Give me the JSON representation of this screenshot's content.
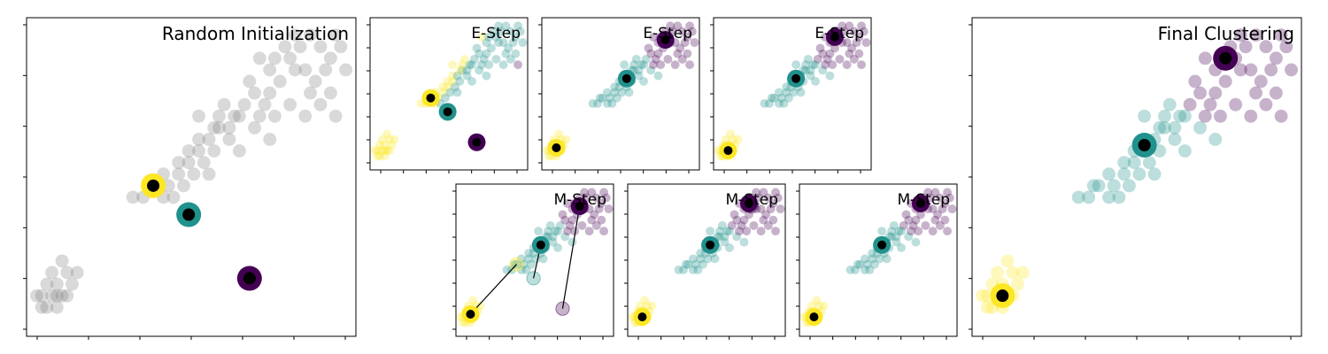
{
  "colors": {
    "init": "#808080",
    "cluster_yellow": "#fde725",
    "cluster_teal": "#21918c",
    "cluster_purple": "#440154",
    "center_dot": "#000000",
    "frame": "#000000"
  },
  "chart_data": [
    {
      "id": "random-init",
      "type": "scatter",
      "title": "Random Initialization",
      "xlim": [
        0,
        6.5
      ],
      "ylim": [
        -0.3,
        5.2
      ],
      "ticks_labeled": false,
      "points_color": "gray",
      "points": [
        [
          0.3,
          0.4
        ],
        [
          0.4,
          0.2
        ],
        [
          0.5,
          0.4
        ],
        [
          0.6,
          0.6
        ],
        [
          0.7,
          0.4
        ],
        [
          0.4,
          0.6
        ],
        [
          0.5,
          0.8
        ],
        [
          0.6,
          0.2
        ],
        [
          0.8,
          0.4
        ],
        [
          0.9,
          0.6
        ],
        [
          0.8,
          0.8
        ],
        [
          0.7,
          1.0
        ],
        [
          0.3,
          0.2
        ],
        [
          0.2,
          0.4
        ],
        [
          0.6,
          0.4
        ],
        [
          1.0,
          0.8
        ],
        [
          2.3,
          2.1
        ],
        [
          2.5,
          2.3
        ],
        [
          2.7,
          2.5
        ],
        [
          2.8,
          2.3
        ],
        [
          3.0,
          2.5
        ],
        [
          3.1,
          2.3
        ],
        [
          3.2,
          2.7
        ],
        [
          3.3,
          2.5
        ],
        [
          3.4,
          2.9
        ],
        [
          3.5,
          2.7
        ],
        [
          3.6,
          2.5
        ],
        [
          3.7,
          2.9
        ],
        [
          3.4,
          3.1
        ],
        [
          3.6,
          3.1
        ],
        [
          3.8,
          3.3
        ],
        [
          4.0,
          3.1
        ],
        [
          4.1,
          3.5
        ],
        [
          3.9,
          3.7
        ],
        [
          4.3,
          3.7
        ],
        [
          4.2,
          3.5
        ],
        [
          4.5,
          3.3
        ],
        [
          4.6,
          3.5
        ],
        [
          4.7,
          3.7
        ],
        [
          4.5,
          3.9
        ],
        [
          4.8,
          3.9
        ],
        [
          2.1,
          2.1
        ],
        [
          2.4,
          2.3
        ],
        [
          2.7,
          2.1
        ],
        [
          2.9,
          2.1
        ],
        [
          3.0,
          2.7
        ],
        [
          3.2,
          2.9
        ],
        [
          3.4,
          3.5
        ],
        [
          3.7,
          3.3
        ],
        [
          4.0,
          3.3
        ],
        [
          4.2,
          2.9
        ],
        [
          4.8,
          3.1
        ],
        [
          3.8,
          3.5
        ],
        [
          4.9,
          3.5
        ],
        [
          4.4,
          4.1
        ],
        [
          4.6,
          4.5
        ],
        [
          4.8,
          4.3
        ],
        [
          5.0,
          4.1
        ],
        [
          5.2,
          4.5
        ],
        [
          5.4,
          4.7
        ],
        [
          5.6,
          4.9
        ],
        [
          5.8,
          4.7
        ],
        [
          5.5,
          4.3
        ],
        [
          5.7,
          4.1
        ],
        [
          5.9,
          4.3
        ],
        [
          6.0,
          4.5
        ],
        [
          6.1,
          4.9
        ],
        [
          6.2,
          4.7
        ],
        [
          6.3,
          4.3
        ],
        [
          5.3,
          4.9
        ],
        [
          5.1,
          4.7
        ],
        [
          4.9,
          4.5
        ],
        [
          5.3,
          4.3
        ],
        [
          5.6,
          3.9
        ],
        [
          6.0,
          3.9
        ],
        [
          5.8,
          3.7
        ],
        [
          6.1,
          3.5
        ],
        [
          5.2,
          3.7
        ],
        [
          5.5,
          3.5
        ]
      ],
      "centers": [
        {
          "x": 2.5,
          "y": 2.3,
          "cluster": "yellow"
        },
        {
          "x": 3.2,
          "y": 1.8,
          "cluster": "teal"
        },
        {
          "x": 4.4,
          "y": 0.7,
          "cluster": "purple"
        }
      ]
    },
    {
      "id": "e-step-1",
      "type": "scatter",
      "title": "E-Step",
      "ticks_labeled": false,
      "centers": [
        {
          "x": 2.5,
          "y": 2.3,
          "cluster": "yellow"
        },
        {
          "x": 3.2,
          "y": 1.8,
          "cluster": "teal"
        },
        {
          "x": 4.4,
          "y": 0.7,
          "cluster": "purple"
        }
      ]
    },
    {
      "id": "e-step-2",
      "type": "scatter",
      "title": "E-Step",
      "ticks_labeled": false,
      "centers": [
        {
          "x": 0.6,
          "y": 0.5,
          "cluster": "yellow"
        },
        {
          "x": 3.5,
          "y": 3.0,
          "cluster": "teal"
        },
        {
          "x": 5.1,
          "y": 4.4,
          "cluster": "purple"
        }
      ]
    },
    {
      "id": "e-step-3",
      "type": "scatter",
      "title": "E-Step",
      "ticks_labeled": false,
      "centers": [
        {
          "x": 0.6,
          "y": 0.4,
          "cluster": "yellow"
        },
        {
          "x": 3.4,
          "y": 3.0,
          "cluster": "teal"
        },
        {
          "x": 5.0,
          "y": 4.5,
          "cluster": "purple"
        }
      ]
    },
    {
      "id": "m-step-1",
      "type": "scatter",
      "title": "M-Step",
      "ticks_labeled": false,
      "centers": [
        {
          "x": 0.6,
          "y": 0.5,
          "cluster": "yellow"
        },
        {
          "x": 3.5,
          "y": 3.0,
          "cluster": "teal"
        },
        {
          "x": 5.1,
          "y": 4.4,
          "cluster": "purple"
        }
      ],
      "previous_centers": [
        {
          "x": 2.5,
          "y": 2.3,
          "cluster": "yellow"
        },
        {
          "x": 3.2,
          "y": 1.8,
          "cluster": "teal"
        },
        {
          "x": 4.4,
          "y": 0.7,
          "cluster": "purple"
        }
      ]
    },
    {
      "id": "m-step-2",
      "type": "scatter",
      "title": "M-Step",
      "ticks_labeled": false,
      "centers": [
        {
          "x": 0.6,
          "y": 0.4,
          "cluster": "yellow"
        },
        {
          "x": 3.4,
          "y": 3.0,
          "cluster": "teal"
        },
        {
          "x": 5.0,
          "y": 4.5,
          "cluster": "purple"
        }
      ],
      "previous_centers": [
        {
          "x": 0.6,
          "y": 0.5,
          "cluster": "yellow"
        },
        {
          "x": 3.5,
          "y": 3.0,
          "cluster": "teal"
        },
        {
          "x": 5.1,
          "y": 4.4,
          "cluster": "purple"
        }
      ]
    },
    {
      "id": "m-step-3",
      "type": "scatter",
      "title": "M-Step",
      "ticks_labeled": false,
      "centers": [
        {
          "x": 0.6,
          "y": 0.4,
          "cluster": "yellow"
        },
        {
          "x": 3.4,
          "y": 3.0,
          "cluster": "teal"
        },
        {
          "x": 5.0,
          "y": 4.5,
          "cluster": "purple"
        }
      ],
      "previous_centers": [
        {
          "x": 0.6,
          "y": 0.4,
          "cluster": "yellow"
        },
        {
          "x": 3.4,
          "y": 3.0,
          "cluster": "teal"
        },
        {
          "x": 5.0,
          "y": 4.5,
          "cluster": "purple"
        }
      ]
    },
    {
      "id": "final-clustering",
      "type": "scatter",
      "title": "Final Clustering",
      "ticks_labeled": false,
      "centers": [
        {
          "x": 0.6,
          "y": 0.4,
          "cluster": "yellow"
        },
        {
          "x": 3.4,
          "y": 3.0,
          "cluster": "teal"
        },
        {
          "x": 5.0,
          "y": 4.5,
          "cluster": "purple"
        }
      ]
    }
  ]
}
